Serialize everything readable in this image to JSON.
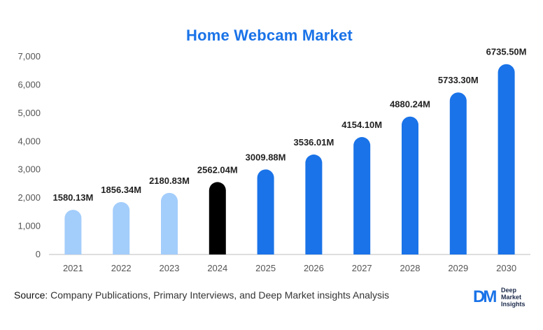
{
  "chart_data": {
    "type": "bar",
    "title": "Home Webcam Market",
    "xlabel": "",
    "ylabel": "",
    "categories": [
      "2021",
      "2022",
      "2023",
      "2024",
      "2025",
      "2026",
      "2027",
      "2028",
      "2029",
      "2030"
    ],
    "values": [
      1580.13,
      1856.34,
      2180.83,
      2562.04,
      3009.88,
      3536.01,
      4154.1,
      4880.24,
      5733.3,
      6735.5
    ],
    "data_labels": [
      "1580.13M",
      "1856.34M",
      "2180.83M",
      "2562.04M",
      "3009.88M",
      "3536.01M",
      "4154.10M",
      "4880.24M",
      "5733.30M",
      "6735.50M"
    ],
    "bar_colors": [
      "#a3cdfb",
      "#a3cdfb",
      "#a3cdfb",
      "#000000",
      "#1a73e8",
      "#1a73e8",
      "#1a73e8",
      "#1a73e8",
      "#1a73e8",
      "#1a73e8"
    ],
    "ylim": [
      0,
      7000
    ],
    "yticks": [
      0,
      1000,
      2000,
      3000,
      4000,
      5000,
      6000,
      7000
    ],
    "ytick_labels": [
      "0",
      "1,000",
      "2,000",
      "3,000",
      "4,000",
      "5,000",
      "6,000",
      "7,000"
    ],
    "grid": false,
    "legend": "none"
  },
  "footer": {
    "source_key": "Source",
    "source_text": ": Company Publications, Primary Interviews, and Deep Market insights Analysis"
  },
  "logo": {
    "mark": "DM",
    "line1": "Deep",
    "line2": "Market",
    "line3": "Insights"
  },
  "colors": {
    "title": "#1a73e8",
    "historical": "#a3cdfb",
    "base_year": "#000000",
    "forecast": "#1a73e8"
  }
}
